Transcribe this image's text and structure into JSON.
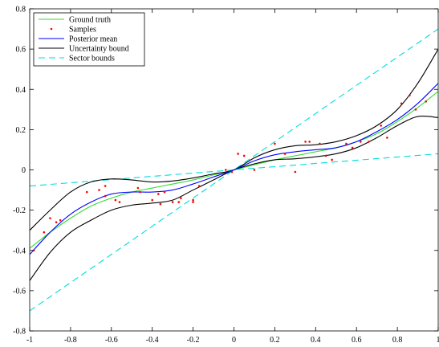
{
  "chart_data": {
    "type": "line",
    "xlim": [
      -1,
      1
    ],
    "ylim": [
      -0.8,
      0.8
    ],
    "xticks": [
      -1,
      -0.8,
      -0.6,
      -0.4,
      -0.2,
      0,
      0.2,
      0.4,
      0.6,
      0.8,
      1
    ],
    "yticks": [
      -0.8,
      -0.6,
      -0.4,
      -0.2,
      0,
      0.2,
      0.4,
      0.6,
      0.8
    ],
    "xtick_labels": [
      "-1",
      "-0.8",
      "-0.6",
      "-0.4",
      "-0.2",
      "0",
      "0.2",
      "0.4",
      "0.6",
      "0.8",
      "1"
    ],
    "ytick_labels": [
      "-0.8",
      "-0.6",
      "-0.4",
      "-0.2",
      "0",
      "0.2",
      "0.4",
      "0.6",
      "0.8"
    ],
    "grid": false,
    "legend_position": "top-left",
    "colors": {
      "ground_truth": "#33dd33",
      "samples": "#ff0000",
      "posterior_mean": "#0000ff",
      "uncertainty": "#000000",
      "sector": "#00dddd"
    },
    "series": [
      {
        "name": "Ground truth",
        "style": "solid",
        "x": [
          -1,
          -0.9,
          -0.8,
          -0.7,
          -0.6,
          -0.5,
          -0.4,
          -0.3,
          -0.2,
          -0.1,
          0,
          0.1,
          0.2,
          0.3,
          0.4,
          0.5,
          0.6,
          0.7,
          0.8,
          0.9,
          1
        ],
        "y": [
          -0.39,
          -0.31,
          -0.24,
          -0.18,
          -0.14,
          -0.11,
          -0.09,
          -0.07,
          -0.05,
          -0.025,
          0,
          0.025,
          0.05,
          0.07,
          0.09,
          0.11,
          0.14,
          0.18,
          0.24,
          0.31,
          0.39
        ]
      },
      {
        "name": "Samples",
        "style": "markers",
        "x": [
          -0.98,
          -0.93,
          -0.9,
          -0.87,
          -0.85,
          -0.72,
          -0.66,
          -0.63,
          -0.63,
          -0.58,
          -0.56,
          -0.47,
          -0.46,
          -0.4,
          -0.37,
          -0.36,
          -0.34,
          -0.3,
          -0.27,
          -0.26,
          -0.2,
          -0.2,
          -0.17,
          -0.04,
          -0.01,
          0.02,
          0.05,
          0.1,
          0.2,
          0.25,
          0.3,
          0.35,
          0.37,
          0.42,
          0.45,
          0.48,
          0.55,
          0.58,
          0.62,
          0.66,
          0.72,
          0.75,
          0.82,
          0.86,
          0.89,
          0.94
        ],
        "y": [
          -0.4,
          -0.31,
          -0.24,
          -0.26,
          -0.25,
          -0.11,
          -0.1,
          -0.08,
          -0.13,
          -0.15,
          -0.16,
          -0.09,
          -0.11,
          -0.15,
          -0.12,
          -0.17,
          -0.11,
          -0.16,
          -0.16,
          -0.14,
          -0.15,
          -0.16,
          -0.08,
          0.0,
          -0.01,
          0.08,
          0.07,
          0.0,
          0.13,
          0.08,
          -0.01,
          0.14,
          0.14,
          0.13,
          0.07,
          0.05,
          0.13,
          0.11,
          0.14,
          0.14,
          0.22,
          0.16,
          0.33,
          0.37,
          0.3,
          0.34
        ]
      },
      {
        "name": "Posterior mean",
        "style": "solid",
        "x": [
          -1,
          -0.9,
          -0.8,
          -0.7,
          -0.6,
          -0.5,
          -0.4,
          -0.3,
          -0.2,
          -0.1,
          0,
          0.1,
          0.2,
          0.3,
          0.4,
          0.5,
          0.6,
          0.7,
          0.8,
          0.9,
          1
        ],
        "y": [
          -0.42,
          -0.31,
          -0.22,
          -0.16,
          -0.12,
          -0.11,
          -0.11,
          -0.1,
          -0.07,
          -0.035,
          0,
          0.045,
          0.075,
          0.09,
          0.1,
          0.11,
          0.14,
          0.19,
          0.25,
          0.33,
          0.43
        ]
      },
      {
        "name": "Uncertainty bound",
        "style": "solid",
        "x": [
          -1,
          -0.9,
          -0.8,
          -0.7,
          -0.6,
          -0.5,
          -0.4,
          -0.3,
          -0.2,
          -0.1,
          0,
          0.1,
          0.2,
          0.3,
          0.4,
          0.5,
          0.6,
          0.7,
          0.8,
          0.9,
          1
        ],
        "y": [
          -0.3,
          -0.2,
          -0.11,
          -0.06,
          -0.045,
          -0.05,
          -0.06,
          -0.055,
          -0.04,
          -0.02,
          0,
          0.06,
          0.1,
          0.12,
          0.125,
          0.14,
          0.17,
          0.22,
          0.3,
          0.43,
          0.6
        ]
      },
      {
        "name": "",
        "style": "solid",
        "x": [
          -1,
          -0.9,
          -0.8,
          -0.7,
          -0.6,
          -0.5,
          -0.4,
          -0.3,
          -0.2,
          -0.1,
          0,
          0.1,
          0.2,
          0.3,
          0.4,
          0.5,
          0.6,
          0.7,
          0.8,
          0.9,
          1
        ],
        "y": [
          -0.55,
          -0.41,
          -0.31,
          -0.25,
          -0.2,
          -0.175,
          -0.165,
          -0.15,
          -0.1,
          -0.05,
          0,
          0.03,
          0.05,
          0.055,
          0.065,
          0.08,
          0.11,
          0.16,
          0.22,
          0.265,
          0.26
        ]
      },
      {
        "name": "Sector bounds",
        "style": "dashed",
        "x": [
          -1,
          1
        ],
        "y": [
          -0.7,
          0.7
        ]
      },
      {
        "name": "",
        "style": "dashed",
        "x": [
          -1,
          1
        ],
        "y": [
          -0.08,
          0.08
        ]
      }
    ],
    "legend": [
      {
        "label": "Ground truth",
        "color": "#33dd33",
        "style": "solid"
      },
      {
        "label": "Samples",
        "color": "#ff0000",
        "style": "marker"
      },
      {
        "label": "Posterior mean",
        "color": "#0000ff",
        "style": "solid"
      },
      {
        "label": "Uncertainty bound",
        "color": "#000000",
        "style": "solid"
      },
      {
        "label": "Sector bounds",
        "color": "#00dddd",
        "style": "dashed"
      }
    ]
  }
}
